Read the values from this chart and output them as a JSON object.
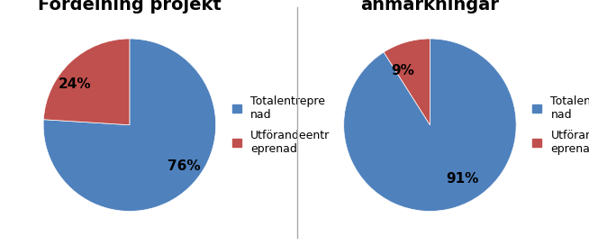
{
  "chart1": {
    "title": "Fördelning projekt",
    "values": [
      76,
      24
    ],
    "labels": [
      "76%",
      "24%"
    ],
    "colors": [
      "#4F81BD",
      "#C0504D"
    ],
    "legend_labels": [
      "Totalentrepre\nnad",
      "Utförandeentr\neprenad"
    ],
    "startangle": 90
  },
  "chart2": {
    "title": "Fördelning\nanmärkningar",
    "values": [
      91,
      9
    ],
    "labels": [
      "91%",
      "9%"
    ],
    "colors": [
      "#4F81BD",
      "#C0504D"
    ],
    "legend_labels": [
      "Totalentrepre\nnad",
      "Utförandeentr\neprenad"
    ],
    "startangle": 90
  },
  "bg_color": "#FFFFFF",
  "divider_color": "#AAAAAA",
  "title_fontsize": 14,
  "label_fontsize": 11,
  "legend_fontsize": 9
}
